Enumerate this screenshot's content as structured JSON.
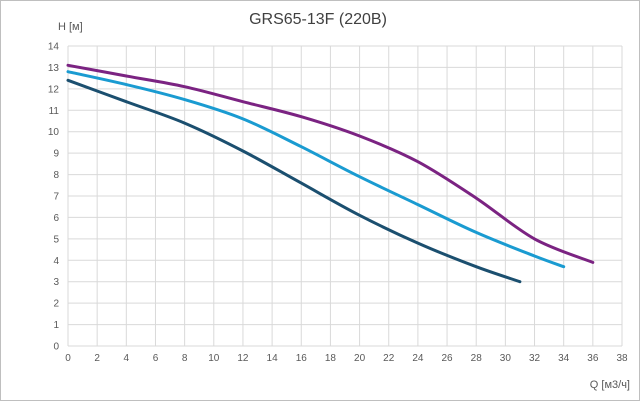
{
  "chart_data": {
    "type": "line",
    "title": "GRS65-13F (220В)",
    "xlabel": "Q [м3/ч]",
    "ylabel": "H [м]",
    "xlim": [
      0,
      38
    ],
    "ylim": [
      0,
      14
    ],
    "xticks": [
      "0",
      "2",
      "4",
      "6",
      "8",
      "10",
      "12",
      "14",
      "16",
      "18",
      "20",
      "22",
      "24",
      "26",
      "28",
      "30",
      "32",
      "34",
      "36",
      "38"
    ],
    "yticks": [
      "0",
      "1",
      "2",
      "3",
      "4",
      "5",
      "6",
      "7",
      "8",
      "9",
      "10",
      "11",
      "12",
      "13",
      "14"
    ],
    "grid": true,
    "series": [
      {
        "color": "#7b2382",
        "x": [
          0,
          4,
          8,
          12,
          16,
          20,
          24,
          28,
          32,
          36
        ],
        "y": [
          13.1,
          12.6,
          12.1,
          11.4,
          10.7,
          9.8,
          8.6,
          6.9,
          5.0,
          3.9
        ]
      },
      {
        "color": "#1a9bd1",
        "x": [
          0,
          4,
          8,
          12,
          16,
          20,
          24,
          28,
          32,
          34
        ],
        "y": [
          12.8,
          12.2,
          11.5,
          10.6,
          9.3,
          7.9,
          6.6,
          5.3,
          4.2,
          3.7
        ]
      },
      {
        "color": "#1b4f6f",
        "x": [
          0,
          4,
          8,
          12,
          16,
          20,
          24,
          28,
          31
        ],
        "y": [
          12.4,
          11.4,
          10.4,
          9.1,
          7.6,
          6.1,
          4.8,
          3.7,
          3.0
        ]
      }
    ]
  }
}
